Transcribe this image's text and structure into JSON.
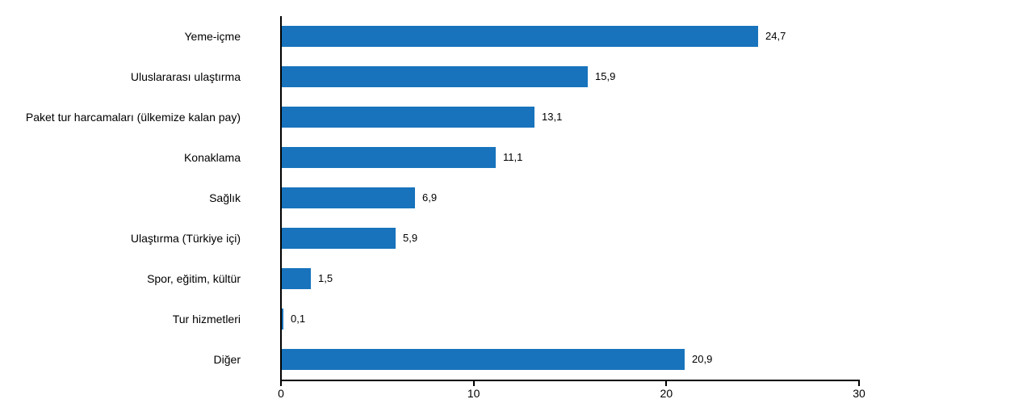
{
  "chart_data": {
    "type": "bar",
    "orientation": "horizontal",
    "title": "",
    "xlabel": "",
    "ylabel": "",
    "categories": [
      "Yeme-içme",
      "Uluslararası ulaştırma",
      "Paket tur harcamaları (ülkemize kalan pay)",
      "Konaklama",
      "Sağlık",
      "Ulaştırma (Türkiye içi)",
      "Spor, eğitim, kültür",
      "Tur hizmetleri",
      "Diğer"
    ],
    "values": [
      24.7,
      15.9,
      13.1,
      11.1,
      6.9,
      5.9,
      1.5,
      0.1,
      20.9
    ],
    "value_labels": [
      "24,7",
      "15,9",
      "13,1",
      "11,1",
      "6,9",
      "5,9",
      "1,5",
      "0,1",
      "20,9"
    ],
    "xlim": [
      0,
      30
    ],
    "xticks": [
      0,
      10,
      20,
      30
    ],
    "xtick_labels": [
      "0",
      "10",
      "20",
      "30"
    ],
    "grid": false,
    "legend": false,
    "bar_color": "#1873BC",
    "axis_color": "#000000",
    "text_color": "#000000"
  }
}
